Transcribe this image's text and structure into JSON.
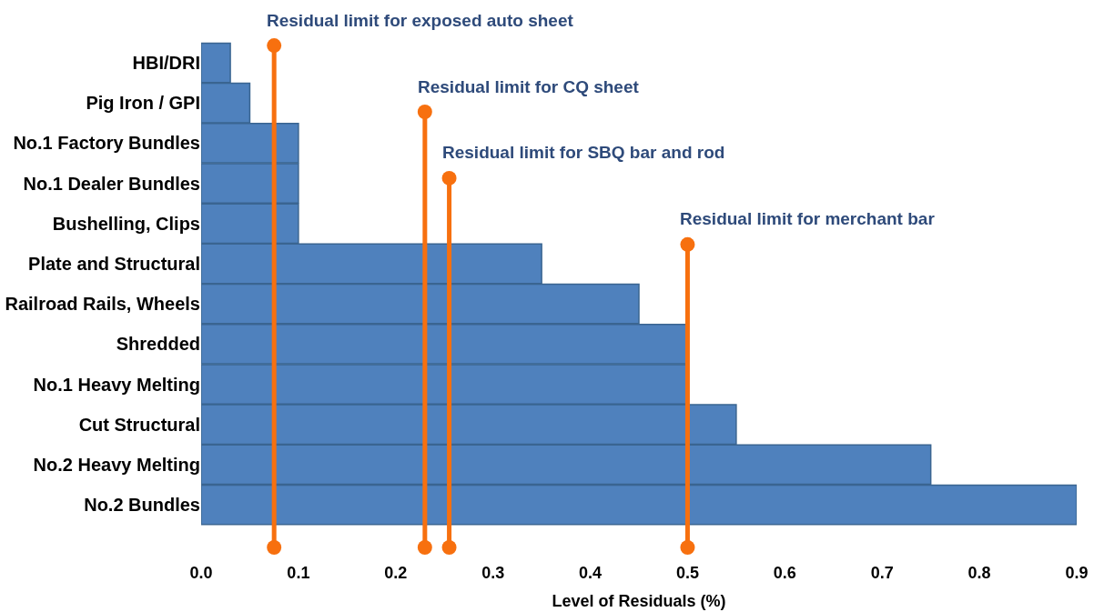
{
  "chart_data": {
    "type": "bar",
    "orientation": "horizontal",
    "xlabel": "Level of Residuals (%)",
    "categories": [
      "HBI/DRI",
      "Pig Iron / GPI",
      "No.1 Factory Bundles",
      "No.1 Dealer Bundles",
      "Bushelling, Clips",
      "Plate and Structural",
      "Railroad Rails, Wheels",
      "Shredded",
      "No.1 Heavy Melting",
      "Cut Structural",
      "No.2 Heavy Melting",
      "No.2 Bundles"
    ],
    "values": [
      0.03,
      0.05,
      0.1,
      0.1,
      0.1,
      0.35,
      0.45,
      0.5,
      0.5,
      0.55,
      0.75,
      0.9
    ],
    "color": "#4f81bd",
    "xlim": [
      0,
      0.9
    ],
    "xticks": [
      {
        "value": 0,
        "label": "0.0"
      },
      0.1,
      0.2,
      0.3,
      0.4,
      0.5,
      0.6,
      0.7,
      0.8,
      0.9
    ],
    "ref_lines": [
      {
        "axis": "x",
        "value": 0.075,
        "label": "Residual limit for exposed auto sheet",
        "color": "#f7700f"
      },
      {
        "axis": "x",
        "value": 0.23,
        "label": "Residual limit for CQ sheet",
        "color": "#f7700f"
      },
      {
        "axis": "x",
        "value": 0.255,
        "label": "Residual limit for SBQ bar and rod",
        "color": "#f7700f"
      },
      {
        "axis": "x",
        "value": 0.5,
        "label": "Residual limit for merchant bar",
        "color": "#f7700f"
      }
    ]
  }
}
